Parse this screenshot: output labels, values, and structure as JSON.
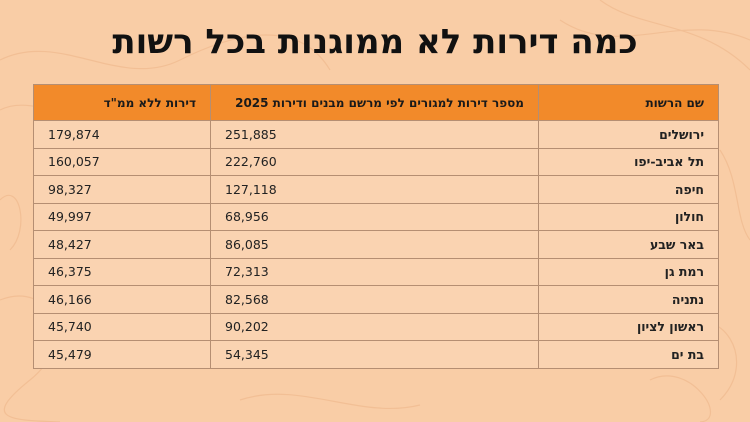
{
  "title": "כמה דירות לא ממוגנות בכל רשות",
  "headers": {
    "authority": "שם הרשות",
    "apartments": "מספר דירות למגורים לפי מרשם מבנים ודירות 2025",
    "no_safe_room": "דירות ללא ממ\"ד"
  },
  "rows": [
    {
      "name": "ירושלים",
      "apartments": "251,885",
      "no_safe_room": "179,874"
    },
    {
      "name": "תל אביב-יפו",
      "apartments": "222,760",
      "no_safe_room": "160,057"
    },
    {
      "name": "חיפה",
      "apartments": "127,118",
      "no_safe_room": "98,327"
    },
    {
      "name": "חולון",
      "apartments": "68,956",
      "no_safe_room": "49,997"
    },
    {
      "name": "באר שבע",
      "apartments": "86,085",
      "no_safe_room": "48,427"
    },
    {
      "name": "רמת גן",
      "apartments": "72,313",
      "no_safe_room": "46,375"
    },
    {
      "name": "נתניה",
      "apartments": "82,568",
      "no_safe_room": "46,166"
    },
    {
      "name": "ראשון לציון",
      "apartments": "90,202",
      "no_safe_room": "45,740"
    },
    {
      "name": "בת ים",
      "apartments": "54,345",
      "no_safe_room": "45,479"
    }
  ],
  "colors": {
    "background": "#f9cda6",
    "header": "#f28a2a",
    "cell": "#fad3b1"
  }
}
